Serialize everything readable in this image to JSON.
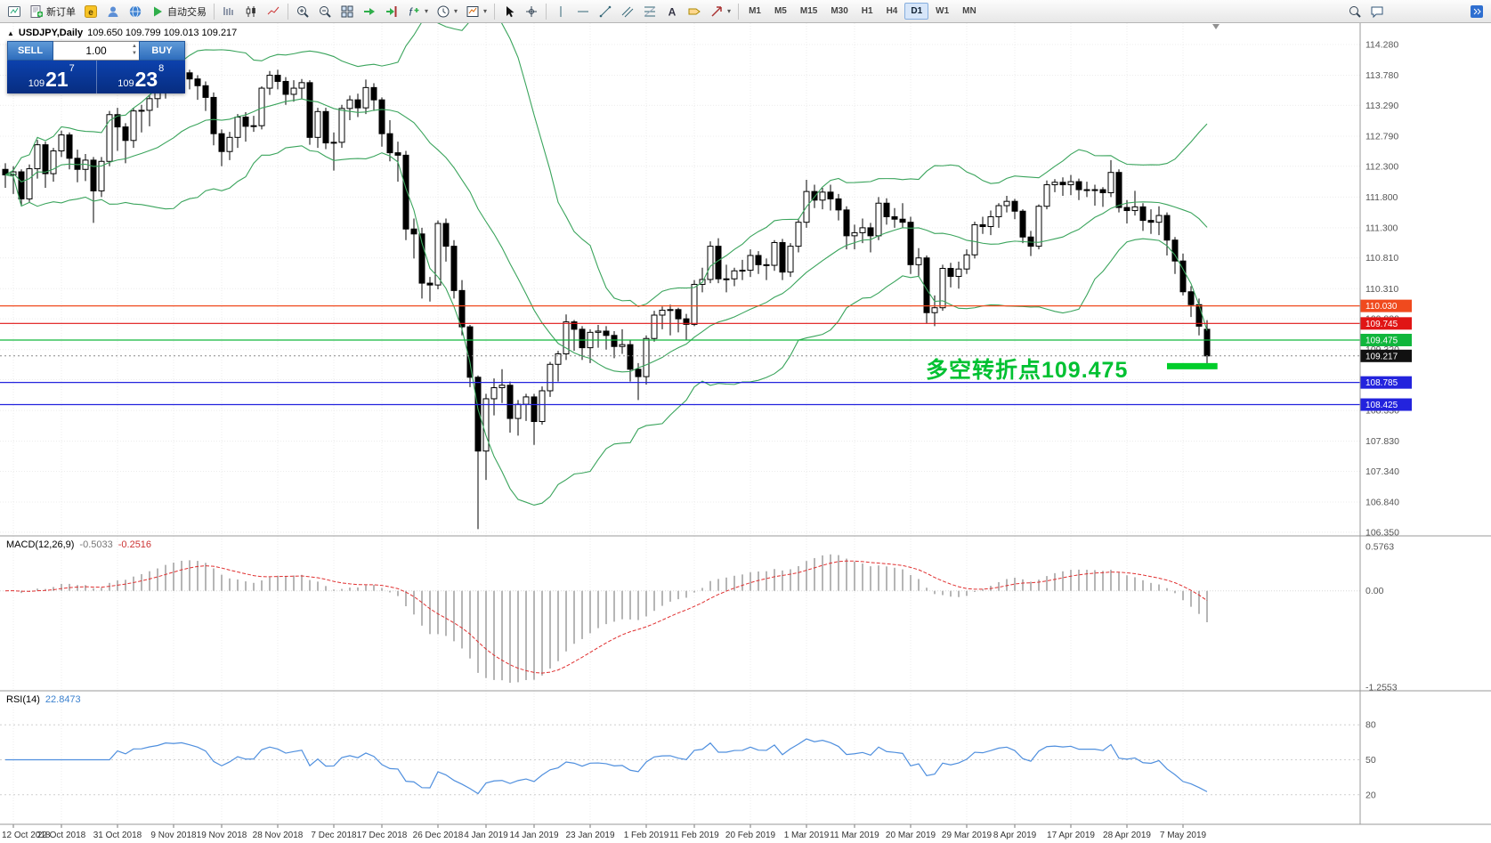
{
  "toolbar": {
    "new_order_label": "新订单",
    "algo_trading_label": "自动交易",
    "timeframes": [
      {
        "label": "M1"
      },
      {
        "label": "M5"
      },
      {
        "label": "M15"
      },
      {
        "label": "M30"
      },
      {
        "label": "H1"
      },
      {
        "label": "H4"
      },
      {
        "label": "D1",
        "active": true
      },
      {
        "label": "W1"
      },
      {
        "label": "MN"
      }
    ]
  },
  "trade_panel": {
    "sell_label": "SELL",
    "buy_label": "BUY",
    "volume": "1.00",
    "sell_price": {
      "prefix": "109",
      "big": "21",
      "sup": "7"
    },
    "buy_price": {
      "prefix": "109",
      "big": "23",
      "sup": "8"
    }
  },
  "chart": {
    "title": "USDJPY,Daily",
    "ohlc": "109.650 109.799 109.013 109.217",
    "price_ticks": [
      "114.280",
      "113.780",
      "113.290",
      "112.790",
      "112.300",
      "111.800",
      "111.300",
      "110.810",
      "110.310",
      "109.820",
      "109.320",
      "108.830",
      "108.330",
      "107.830",
      "107.340",
      "106.840",
      "106.350"
    ],
    "levels": [
      {
        "price": 110.03,
        "label": "110.030",
        "color": "#f04a1e"
      },
      {
        "price": 109.745,
        "label": "109.745",
        "color": "#e01515"
      },
      {
        "price": 109.475,
        "label": "109.475",
        "color": "#10b63c"
      },
      {
        "price": 108.785,
        "label": "108.785",
        "color": "#2323dd"
      },
      {
        "price": 108.425,
        "label": "108.425",
        "color": "#2323dd"
      }
    ],
    "current_price": {
      "price": 109.217,
      "label": "109.217",
      "color": "#111111"
    },
    "highlight_bar": {
      "from_index": 145,
      "to_index": 151.3,
      "price": 109.05,
      "color": "#00cd2a"
    },
    "annotation": {
      "text": "多空转折点109.475",
      "color": "#00c132"
    },
    "dates": [
      {
        "label": "12 Oct 2018",
        "index": 1
      },
      {
        "label": "22 Oct 2018",
        "index": 7
      },
      {
        "label": "31 Oct 2018",
        "index": 14
      },
      {
        "label": "9 Nov 2018",
        "index": 21
      },
      {
        "label": "19 Nov 2018",
        "index": 27
      },
      {
        "label": "28 Nov 2018",
        "index": 34
      },
      {
        "label": "7 Dec 2018",
        "index": 41
      },
      {
        "label": "17 Dec 2018",
        "index": 47
      },
      {
        "label": "26 Dec 2018",
        "index": 54
      },
      {
        "label": "4 Jan 2019",
        "index": 60
      },
      {
        "label": "14 Jan 2019",
        "index": 66
      },
      {
        "label": "23 Jan 2019",
        "index": 73
      },
      {
        "label": "1 Feb 2019",
        "index": 80
      },
      {
        "label": "11 Feb 2019",
        "index": 86
      },
      {
        "label": "20 Feb 2019",
        "index": 93
      },
      {
        "label": "1 Mar 2019",
        "index": 100
      },
      {
        "label": "11 Mar 2019",
        "index": 106
      },
      {
        "label": "20 Mar 2019",
        "index": 113
      },
      {
        "label": "29 Mar 2019",
        "index": 120
      },
      {
        "label": "8 Apr 2019",
        "index": 126
      },
      {
        "label": "17 Apr 2019",
        "index": 133
      },
      {
        "label": "28 Apr 2019",
        "index": 140
      },
      {
        "label": "7 May 2019",
        "index": 147
      }
    ]
  },
  "macd": {
    "label": "MACD(12,26,9)",
    "value_main": "-0.5033",
    "value_signal": "-0.2516",
    "axis": [
      "0.5763",
      "0.00",
      "-1.2553"
    ],
    "histogram_color": "#b6b6b6",
    "signal_color": "#e03030"
  },
  "rsi": {
    "label": "RSI(14)",
    "value": "22.8473",
    "levels": [
      80,
      50,
      20
    ],
    "line_color": "#4f8fde"
  },
  "chart_data": {
    "type": "candlestick",
    "symbol": "USDJPY",
    "timeframe": "Daily",
    "title": "USDJPY,Daily 109.650 109.799 109.013 109.217",
    "price_axis_range": [
      106.35,
      114.28
    ],
    "indicators": [
      "Bollinger Bands (green)",
      "MACD(12,26,9)",
      "RSI(14)"
    ],
    "candles": [
      [
        112.25,
        112.35,
        111.95,
        112.16
      ],
      [
        112.16,
        112.3,
        111.85,
        112.21
      ],
      [
        112.21,
        112.25,
        111.65,
        111.77
      ],
      [
        111.77,
        112.33,
        111.72,
        112.26
      ],
      [
        112.26,
        112.73,
        112.1,
        112.65
      ],
      [
        112.65,
        112.7,
        111.95,
        112.18
      ],
      [
        112.18,
        112.6,
        112.05,
        112.55
      ],
      [
        112.55,
        112.88,
        112.45,
        112.81
      ],
      [
        112.81,
        112.85,
        112.25,
        112.43
      ],
      [
        112.43,
        112.57,
        112.04,
        112.25
      ],
      [
        112.25,
        112.5,
        112.06,
        112.4
      ],
      [
        112.4,
        112.45,
        111.38,
        111.9
      ],
      [
        111.9,
        112.45,
        111.8,
        112.38
      ],
      [
        112.38,
        113.2,
        112.3,
        113.14
      ],
      [
        113.14,
        113.25,
        112.55,
        112.94
      ],
      [
        112.94,
        113.0,
        112.35,
        112.72
      ],
      [
        112.72,
        113.25,
        112.6,
        113.2
      ],
      [
        113.2,
        113.3,
        112.85,
        113.21
      ],
      [
        113.21,
        113.45,
        112.95,
        113.4
      ],
      [
        113.4,
        113.6,
        113.25,
        113.53
      ],
      [
        113.53,
        113.85,
        113.4,
        113.78
      ],
      [
        113.78,
        113.9,
        113.55,
        113.75
      ],
      [
        113.75,
        113.88,
        113.6,
        113.82
      ],
      [
        113.82,
        113.87,
        113.55,
        113.72
      ],
      [
        113.72,
        113.78,
        113.38,
        113.61
      ],
      [
        113.61,
        113.68,
        113.2,
        113.42
      ],
      [
        113.42,
        113.5,
        112.64,
        112.83
      ],
      [
        112.83,
        112.9,
        112.3,
        112.54
      ],
      [
        112.54,
        112.86,
        112.4,
        112.77
      ],
      [
        112.77,
        113.15,
        112.6,
        113.1
      ],
      [
        113.1,
        113.18,
        112.7,
        112.95
      ],
      [
        112.95,
        113.12,
        112.86,
        112.96
      ],
      [
        112.96,
        113.6,
        112.9,
        113.57
      ],
      [
        113.57,
        113.85,
        113.46,
        113.78
      ],
      [
        113.78,
        113.87,
        113.55,
        113.68
      ],
      [
        113.68,
        113.75,
        113.3,
        113.47
      ],
      [
        113.47,
        113.7,
        113.35,
        113.57
      ],
      [
        113.57,
        113.72,
        113.4,
        113.66
      ],
      [
        113.66,
        113.7,
        112.65,
        112.77
      ],
      [
        112.77,
        113.25,
        112.6,
        113.19
      ],
      [
        113.19,
        113.25,
        112.58,
        112.68
      ],
      [
        112.68,
        112.85,
        112.23,
        112.69
      ],
      [
        112.69,
        113.3,
        112.6,
        113.24
      ],
      [
        113.24,
        113.45,
        113.05,
        113.38
      ],
      [
        113.38,
        113.48,
        113.1,
        113.25
      ],
      [
        113.25,
        113.71,
        113.15,
        113.58
      ],
      [
        113.58,
        113.65,
        113.2,
        113.38
      ],
      [
        113.38,
        113.42,
        112.62,
        112.83
      ],
      [
        112.83,
        113.05,
        112.38,
        112.52
      ],
      [
        112.52,
        112.7,
        112.05,
        112.48
      ],
      [
        112.48,
        112.55,
        111.1,
        111.28
      ],
      [
        111.28,
        111.45,
        110.8,
        111.2
      ],
      [
        111.2,
        111.3,
        110.15,
        110.4
      ],
      [
        110.4,
        110.5,
        110.1,
        110.37
      ],
      [
        110.37,
        111.42,
        110.3,
        111.37
      ],
      [
        111.37,
        111.45,
        110.75,
        111.0
      ],
      [
        111.0,
        111.1,
        110.15,
        110.28
      ],
      [
        110.28,
        110.45,
        109.55,
        109.69
      ],
      [
        109.69,
        109.72,
        108.71,
        108.87
      ],
      [
        108.87,
        108.9,
        106.4,
        107.67
      ],
      [
        107.67,
        108.6,
        107.2,
        108.52
      ],
      [
        108.52,
        108.85,
        108.25,
        108.7
      ],
      [
        108.7,
        109.0,
        108.45,
        108.74
      ],
      [
        108.74,
        108.8,
        107.97,
        108.2
      ],
      [
        108.2,
        108.5,
        107.92,
        108.43
      ],
      [
        108.43,
        108.6,
        108.16,
        108.55
      ],
      [
        108.55,
        108.6,
        107.77,
        108.15
      ],
      [
        108.15,
        108.72,
        108.1,
        108.65
      ],
      [
        108.65,
        109.12,
        108.55,
        109.08
      ],
      [
        109.08,
        109.3,
        108.8,
        109.25
      ],
      [
        109.25,
        109.89,
        109.15,
        109.77
      ],
      [
        109.77,
        109.8,
        109.3,
        109.65
      ],
      [
        109.65,
        109.7,
        109.15,
        109.35
      ],
      [
        109.35,
        109.65,
        109.1,
        109.6
      ],
      [
        109.6,
        109.72,
        109.35,
        109.62
      ],
      [
        109.62,
        109.7,
        109.32,
        109.55
      ],
      [
        109.55,
        109.62,
        109.18,
        109.37
      ],
      [
        109.37,
        109.65,
        109.25,
        109.4
      ],
      [
        109.4,
        109.48,
        108.8,
        109.0
      ],
      [
        109.0,
        109.1,
        108.5,
        108.88
      ],
      [
        108.88,
        109.55,
        108.75,
        109.5
      ],
      [
        109.5,
        109.95,
        109.45,
        109.88
      ],
      [
        109.88,
        110.02,
        109.65,
        109.96
      ],
      [
        109.96,
        110.05,
        109.55,
        109.97
      ],
      [
        109.97,
        110.0,
        109.6,
        109.82
      ],
      [
        109.82,
        109.9,
        109.47,
        109.73
      ],
      [
        109.73,
        110.45,
        109.7,
        110.38
      ],
      [
        110.38,
        110.65,
        110.25,
        110.46
      ],
      [
        110.46,
        111.08,
        110.4,
        111.0
      ],
      [
        111.0,
        111.13,
        110.4,
        110.47
      ],
      [
        110.47,
        110.7,
        110.25,
        110.47
      ],
      [
        110.47,
        110.65,
        110.35,
        110.6
      ],
      [
        110.6,
        110.78,
        110.45,
        110.61
      ],
      [
        110.61,
        110.95,
        110.5,
        110.85
      ],
      [
        110.85,
        110.92,
        110.55,
        110.7
      ],
      [
        110.7,
        110.8,
        110.45,
        110.69
      ],
      [
        110.69,
        111.1,
        110.6,
        111.06
      ],
      [
        111.06,
        111.12,
        110.45,
        110.58
      ],
      [
        110.58,
        111.05,
        110.5,
        111.0
      ],
      [
        111.0,
        111.45,
        110.9,
        111.39
      ],
      [
        111.39,
        112.08,
        111.3,
        111.89
      ],
      [
        111.89,
        112.0,
        111.62,
        111.75
      ],
      [
        111.75,
        111.95,
        111.6,
        111.88
      ],
      [
        111.88,
        112.0,
        111.58,
        111.77
      ],
      [
        111.77,
        111.85,
        111.42,
        111.59
      ],
      [
        111.59,
        111.65,
        110.95,
        111.17
      ],
      [
        111.17,
        111.35,
        110.95,
        111.22
      ],
      [
        111.22,
        111.45,
        111.05,
        111.3
      ],
      [
        111.3,
        111.38,
        110.9,
        111.17
      ],
      [
        111.17,
        111.8,
        111.1,
        111.7
      ],
      [
        111.7,
        111.78,
        111.35,
        111.48
      ],
      [
        111.48,
        111.62,
        111.3,
        111.44
      ],
      [
        111.44,
        111.7,
        111.3,
        111.39
      ],
      [
        111.39,
        111.48,
        110.55,
        110.7
      ],
      [
        110.7,
        110.97,
        110.5,
        110.81
      ],
      [
        110.81,
        110.85,
        109.74,
        109.92
      ],
      [
        109.92,
        110.2,
        109.7,
        110.0
      ],
      [
        110.0,
        110.7,
        109.95,
        110.64
      ],
      [
        110.64,
        110.73,
        110.33,
        110.51
      ],
      [
        110.51,
        110.75,
        110.31,
        110.63
      ],
      [
        110.63,
        110.95,
        110.55,
        110.86
      ],
      [
        110.86,
        111.4,
        110.8,
        111.35
      ],
      [
        111.35,
        111.48,
        111.2,
        111.32
      ],
      [
        111.32,
        111.58,
        111.18,
        111.48
      ],
      [
        111.48,
        111.7,
        111.3,
        111.66
      ],
      [
        111.66,
        111.82,
        111.55,
        111.73
      ],
      [
        111.73,
        111.77,
        111.44,
        111.57
      ],
      [
        111.57,
        111.6,
        111.05,
        111.15
      ],
      [
        111.15,
        111.25,
        110.84,
        111.0
      ],
      [
        111.0,
        111.68,
        110.95,
        111.65
      ],
      [
        111.65,
        112.07,
        111.6,
        112.0
      ],
      [
        112.0,
        112.09,
        111.88,
        112.04
      ],
      [
        112.04,
        112.12,
        111.82,
        112.0
      ],
      [
        112.0,
        112.16,
        111.83,
        112.05
      ],
      [
        112.05,
        112.1,
        111.75,
        111.92
      ],
      [
        111.92,
        112.05,
        111.8,
        111.92
      ],
      [
        111.92,
        112.0,
        111.66,
        111.92
      ],
      [
        111.92,
        111.96,
        111.64,
        111.87
      ],
      [
        111.87,
        112.4,
        111.8,
        112.2
      ],
      [
        112.2,
        112.25,
        111.55,
        111.63
      ],
      [
        111.63,
        111.75,
        111.37,
        111.58
      ],
      [
        111.58,
        111.9,
        111.5,
        111.64
      ],
      [
        111.64,
        111.7,
        111.25,
        111.42
      ],
      [
        111.42,
        111.6,
        111.2,
        111.39
      ],
      [
        111.39,
        111.65,
        111.18,
        111.5
      ],
      [
        111.5,
        111.55,
        110.85,
        111.1
      ],
      [
        111.1,
        111.15,
        110.55,
        110.76
      ],
      [
        110.76,
        110.88,
        110.2,
        110.26
      ],
      [
        110.26,
        110.35,
        109.85,
        110.05
      ],
      [
        110.05,
        110.15,
        109.55,
        109.7
      ],
      [
        109.65,
        109.799,
        109.013,
        109.217
      ]
    ]
  }
}
